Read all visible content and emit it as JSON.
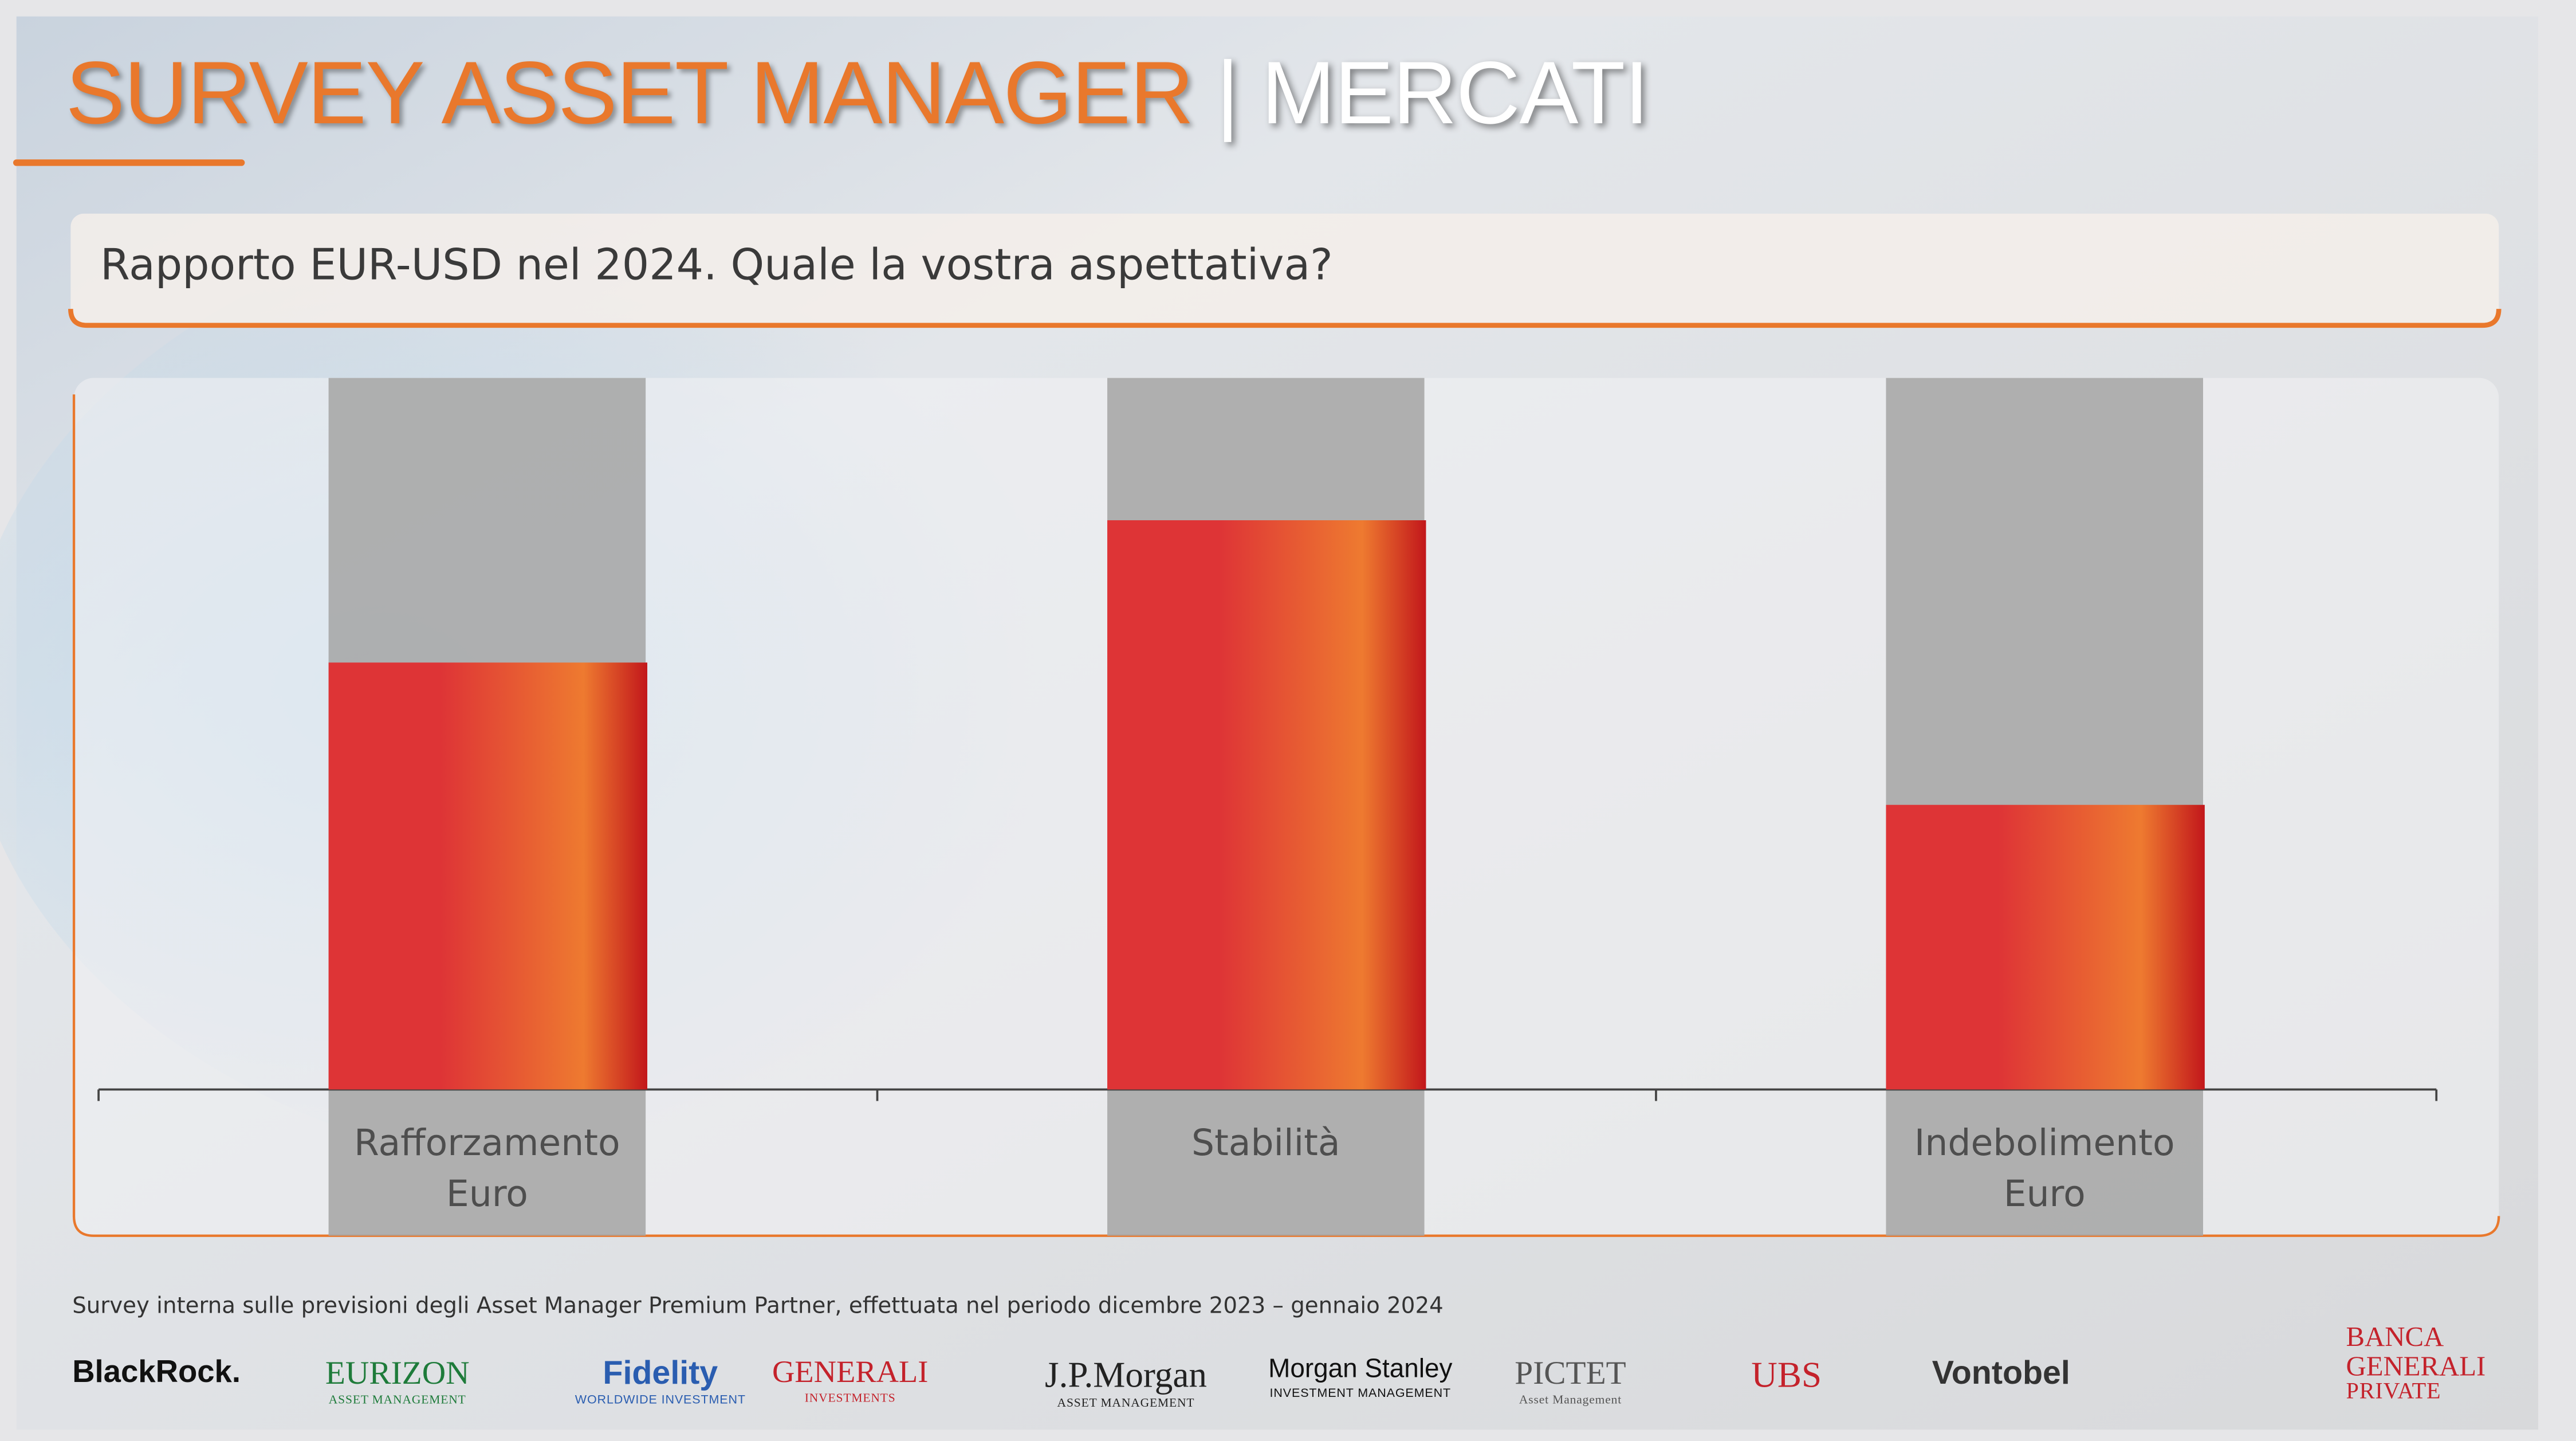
{
  "header": {
    "title": "SURVEY ASSET MANAGER",
    "separator": "|",
    "section": "MERCATI"
  },
  "question": "Rapporto EUR-USD nel 2024. Quale la vostra aspettativa?",
  "chart_data": {
    "type": "bar",
    "categories": [
      "Rafforzamento Euro",
      "Stabilità",
      "Indebolimento Euro"
    ],
    "values": [
      33,
      44,
      22
    ],
    "ylim": [
      0,
      55
    ],
    "colors": [
      "#de3436",
      "#ee7a30",
      "#c2171b"
    ]
  },
  "footnote": "Survey interna sulle previsioni degli Asset Manager Premium Partner, effettuata nel periodo dicembre 2023 – gennaio 2024",
  "logos": [
    {
      "name": "BlackRock."
    },
    {
      "name": "EURIZON",
      "sub": "ASSET MANAGEMENT"
    },
    {
      "name": "Fidelity",
      "sub": "WORLDWIDE INVESTMENT"
    },
    {
      "name": "GENERALI",
      "sub": "INVESTMENTS"
    },
    {
      "name": "J.P.Morgan",
      "sub": "ASSET MANAGEMENT"
    },
    {
      "name": "Morgan Stanley",
      "sub": "INVESTMENT MANAGEMENT"
    },
    {
      "name": "PICTET",
      "sub": "Asset Management"
    },
    {
      "name": "UBS"
    },
    {
      "name": "Vontobel"
    },
    {
      "name": "BANCA GENERALI",
      "sub": "PRIVATE"
    }
  ]
}
